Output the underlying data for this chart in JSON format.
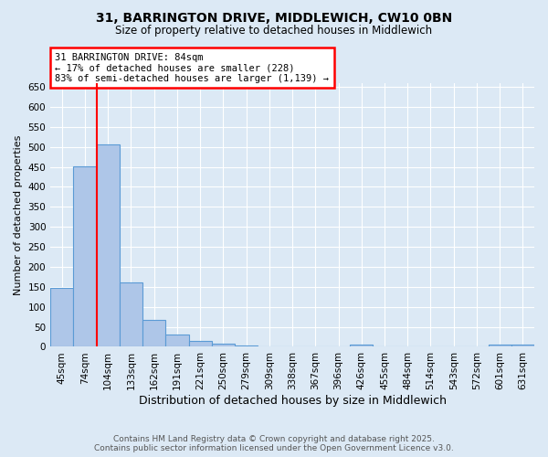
{
  "title_line1": "31, BARRINGTON DRIVE, MIDDLEWICH, CW10 0BN",
  "title_line2": "Size of property relative to detached houses in Middlewich",
  "xlabel": "Distribution of detached houses by size in Middlewich",
  "ylabel": "Number of detached properties",
  "categories": [
    "45sqm",
    "74sqm",
    "104sqm",
    "133sqm",
    "162sqm",
    "191sqm",
    "221sqm",
    "250sqm",
    "279sqm",
    "309sqm",
    "338sqm",
    "367sqm",
    "396sqm",
    "426sqm",
    "455sqm",
    "484sqm",
    "514sqm",
    "543sqm",
    "572sqm",
    "601sqm",
    "631sqm"
  ],
  "values": [
    148,
    451,
    507,
    160,
    68,
    31,
    14,
    8,
    4,
    0,
    0,
    0,
    0,
    5,
    0,
    0,
    0,
    0,
    0,
    5,
    5
  ],
  "bar_color": "#aec6e8",
  "bar_edge_color": "#5b9bd5",
  "annotation_text_line1": "31 BARRINGTON DRIVE: 84sqm",
  "annotation_text_line2": "← 17% of detached houses are smaller (228)",
  "annotation_text_line3": "83% of semi-detached houses are larger (1,139) →",
  "annotation_box_color": "white",
  "annotation_box_edge_color": "red",
  "vline_color": "red",
  "vline_x": 1.5,
  "ylim": [
    0,
    660
  ],
  "yticks": [
    0,
    50,
    100,
    150,
    200,
    250,
    300,
    350,
    400,
    450,
    500,
    550,
    600,
    650
  ],
  "footer_line1": "Contains HM Land Registry data © Crown copyright and database right 2025.",
  "footer_line2": "Contains public sector information licensed under the Open Government Licence v3.0.",
  "bg_color": "#dce9f5",
  "plot_bg_color": "#dce9f5",
  "grid_color": "white",
  "title1_fontsize": 10,
  "title2_fontsize": 8.5,
  "annotation_fontsize": 7.5,
  "ylabel_fontsize": 8,
  "xlabel_fontsize": 9,
  "tick_fontsize": 7.5,
  "footer_fontsize": 6.5
}
